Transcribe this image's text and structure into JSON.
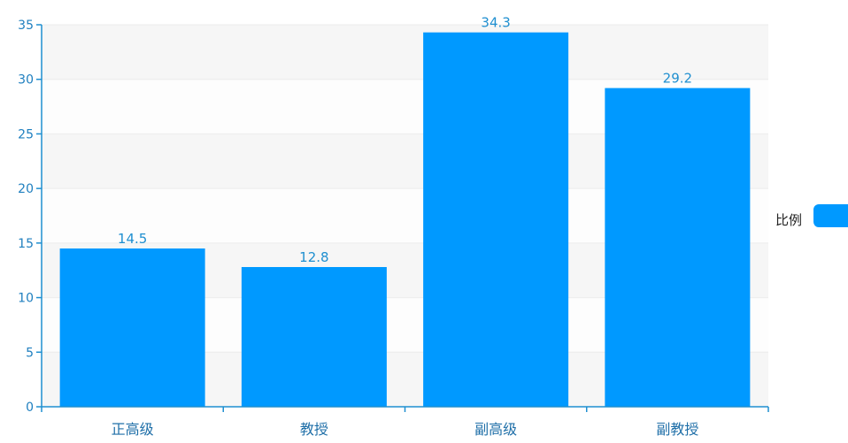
{
  "chart_data": {
    "type": "bar",
    "categories": [
      "正高级",
      "教授",
      "副高级",
      "副教授"
    ],
    "series": [
      {
        "name": "比例",
        "values": [
          14.5,
          12.8,
          34.3,
          29.2
        ],
        "color": "#0099ff"
      }
    ],
    "data_labels": [
      "14.5",
      "12.8",
      "34.3",
      "29.2"
    ],
    "yticks": [
      "0",
      "5",
      "10",
      "15",
      "20",
      "25",
      "30",
      "35"
    ],
    "ylim": [
      0,
      35
    ],
    "grid": true,
    "band_colors": [
      "#f6f6f6",
      "#fdfdfd"
    ],
    "axis_color": "#1f8fd0",
    "legend": {
      "label": "比例",
      "placement": "right",
      "swatch_color": "#0099ff"
    }
  }
}
